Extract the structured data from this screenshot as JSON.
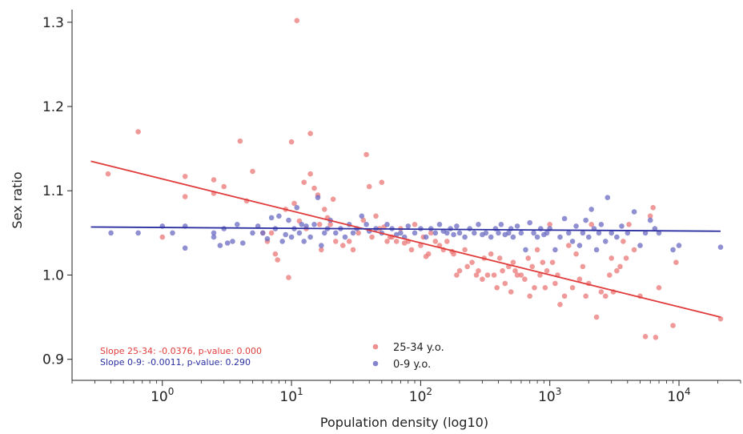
{
  "chart_data": {
    "type": "scatter",
    "title": "",
    "xlabel": "Population density (log10)",
    "ylabel": "Sex ratio",
    "x_scale": "log",
    "xlim": [
      0.2,
      30000
    ],
    "ylim": [
      0.875,
      1.315
    ],
    "x_ticks": [
      {
        "value": 1,
        "base": "10",
        "exp": "0"
      },
      {
        "value": 10,
        "base": "10",
        "exp": "1"
      },
      {
        "value": 100,
        "base": "10",
        "exp": "2"
      },
      {
        "value": 1000,
        "base": "10",
        "exp": "3"
      },
      {
        "value": 10000,
        "base": "10",
        "exp": "4"
      }
    ],
    "y_ticks": [
      {
        "value": 0.9,
        "label": "0.9"
      },
      {
        "value": 1.0,
        "label": "1.0"
      },
      {
        "value": 1.1,
        "label": "1.1"
      },
      {
        "value": 1.2,
        "label": "1.2"
      },
      {
        "value": 1.3,
        "label": "1.3"
      }
    ],
    "grid": false,
    "legend_position": "bottom-center",
    "annotations": [
      {
        "text": "Slope 25-34: -0.0376, p-value: 0.000",
        "color": "#e03c3c"
      },
      {
        "text": "Slope 0-9: -0.0011, p-value: 0.290",
        "color": "#2b2fa0"
      }
    ],
    "series": [
      {
        "name": "25-34 y.o.",
        "color": "#ec7c7c",
        "line_color": "#e03c3c",
        "fit_line": {
          "x": [
            0.28,
            21000
          ],
          "y": [
            1.135,
            0.95
          ]
        },
        "points": [
          [
            0.38,
            1.12
          ],
          [
            0.65,
            1.17
          ],
          [
            1.0,
            1.045
          ],
          [
            1.5,
            1.093
          ],
          [
            1.5,
            1.117
          ],
          [
            2.5,
            1.097
          ],
          [
            2.5,
            1.113
          ],
          [
            3.0,
            1.105
          ],
          [
            4.0,
            1.159
          ],
          [
            4.5,
            1.088
          ],
          [
            5.0,
            1.123
          ],
          [
            6.0,
            1.05
          ],
          [
            6.5,
            1.04
          ],
          [
            7.0,
            1.05
          ],
          [
            7.5,
            1.025
          ],
          [
            7.8,
            1.018
          ],
          [
            9.0,
            1.078
          ],
          [
            9.5,
            0.997
          ],
          [
            10.0,
            1.158
          ],
          [
            10.5,
            1.085
          ],
          [
            11.0,
            1.302
          ],
          [
            11.5,
            1.064
          ],
          [
            12.5,
            1.11
          ],
          [
            13.0,
            1.055
          ],
          [
            14.0,
            1.168
          ],
          [
            14.0,
            1.12
          ],
          [
            15.0,
            1.103
          ],
          [
            16.0,
            1.095
          ],
          [
            16.5,
            1.06
          ],
          [
            17.0,
            1.03
          ],
          [
            18.0,
            1.078
          ],
          [
            19.0,
            1.068
          ],
          [
            20.0,
            1.06
          ],
          [
            21.0,
            1.09
          ],
          [
            22.0,
            1.04
          ],
          [
            25.0,
            1.035
          ],
          [
            28.0,
            1.04
          ],
          [
            30.0,
            1.03
          ],
          [
            33.0,
            1.05
          ],
          [
            36.0,
            1.065
          ],
          [
            38.0,
            1.143
          ],
          [
            40.0,
            1.105
          ],
          [
            42.0,
            1.045
          ],
          [
            45.0,
            1.07
          ],
          [
            48.0,
            1.055
          ],
          [
            50.0,
            1.11
          ],
          [
            52.0,
            1.057
          ],
          [
            55.0,
            1.04
          ],
          [
            58.0,
            1.045
          ],
          [
            60.0,
            1.045
          ],
          [
            65.0,
            1.04
          ],
          [
            70.0,
            1.055
          ],
          [
            75.0,
            1.038
          ],
          [
            80.0,
            1.04
          ],
          [
            85.0,
            1.03
          ],
          [
            90.0,
            1.06
          ],
          [
            100.0,
            1.035
          ],
          [
            105.0,
            1.045
          ],
          [
            110.0,
            1.022
          ],
          [
            115.0,
            1.025
          ],
          [
            120.0,
            1.05
          ],
          [
            130.0,
            1.04
          ],
          [
            140.0,
            1.035
          ],
          [
            150.0,
            1.03
          ],
          [
            160.0,
            1.04
          ],
          [
            175.0,
            1.028
          ],
          [
            180.0,
            1.025
          ],
          [
            190.0,
            1.0
          ],
          [
            200.0,
            1.005
          ],
          [
            220.0,
            1.03
          ],
          [
            230.0,
            1.01
          ],
          [
            250.0,
            1.015
          ],
          [
            270.0,
            1.0
          ],
          [
            280.0,
            1.005
          ],
          [
            300.0,
            0.995
          ],
          [
            310.0,
            1.02
          ],
          [
            330.0,
            1.0
          ],
          [
            350.0,
            1.025
          ],
          [
            370.0,
            1.0
          ],
          [
            390.0,
            0.985
          ],
          [
            410.0,
            1.02
          ],
          [
            430.0,
            1.005
          ],
          [
            450.0,
            0.99
          ],
          [
            480.0,
            1.01
          ],
          [
            500.0,
            0.98
          ],
          [
            520.0,
            1.015
          ],
          [
            540.0,
            1.005
          ],
          [
            560.0,
            1.0
          ],
          [
            600.0,
            1.0
          ],
          [
            640.0,
            0.995
          ],
          [
            680.0,
            1.02
          ],
          [
            700.0,
            0.975
          ],
          [
            730.0,
            1.01
          ],
          [
            760.0,
            0.985
          ],
          [
            800.0,
            1.03
          ],
          [
            840.0,
            1.0
          ],
          [
            880.0,
            1.015
          ],
          [
            920.0,
            0.985
          ],
          [
            950.0,
            1.005
          ],
          [
            1000.0,
            1.06
          ],
          [
            1050.0,
            1.015
          ],
          [
            1100.0,
            0.99
          ],
          [
            1150.0,
            1.0
          ],
          [
            1200.0,
            0.965
          ],
          [
            1300.0,
            0.975
          ],
          [
            1400.0,
            1.035
          ],
          [
            1500.0,
            0.985
          ],
          [
            1600.0,
            1.025
          ],
          [
            1700.0,
            0.995
          ],
          [
            1800.0,
            1.01
          ],
          [
            1900.0,
            0.975
          ],
          [
            2000.0,
            0.99
          ],
          [
            2100.0,
            1.06
          ],
          [
            2300.0,
            0.95
          ],
          [
            2500.0,
            0.98
          ],
          [
            2700.0,
            0.975
          ],
          [
            2900.0,
            1.0
          ],
          [
            3000.0,
            1.02
          ],
          [
            3100.0,
            0.98
          ],
          [
            3300.0,
            1.005
          ],
          [
            3500.0,
            1.01
          ],
          [
            3700.0,
            1.04
          ],
          [
            3900.0,
            1.02
          ],
          [
            4100.0,
            1.06
          ],
          [
            4500.0,
            1.03
          ],
          [
            5000.0,
            0.975
          ],
          [
            5500.0,
            0.927
          ],
          [
            6000.0,
            1.07
          ],
          [
            6300.0,
            1.08
          ],
          [
            6600.0,
            0.926
          ],
          [
            7000.0,
            0.985
          ],
          [
            9000.0,
            0.94
          ],
          [
            9500.0,
            1.015
          ],
          [
            21000.0,
            0.948
          ]
        ]
      },
      {
        "name": "0-9 y.o.",
        "color": "#7070c4",
        "line_color": "#2b2fa0",
        "fit_line": {
          "x": [
            0.28,
            21000
          ],
          "y": [
            1.057,
            1.052
          ]
        },
        "points": [
          [
            0.4,
            1.05
          ],
          [
            0.65,
            1.05
          ],
          [
            1.0,
            1.058
          ],
          [
            1.2,
            1.05
          ],
          [
            1.5,
            1.032
          ],
          [
            1.5,
            1.058
          ],
          [
            2.5,
            1.05
          ],
          [
            2.5,
            1.045
          ],
          [
            2.8,
            1.035
          ],
          [
            3.0,
            1.055
          ],
          [
            3.2,
            1.038
          ],
          [
            3.5,
            1.04
          ],
          [
            3.8,
            1.06
          ],
          [
            4.2,
            1.038
          ],
          [
            5.0,
            1.05
          ],
          [
            5.5,
            1.058
          ],
          [
            6.0,
            1.05
          ],
          [
            6.5,
            1.043
          ],
          [
            7.0,
            1.068
          ],
          [
            7.5,
            1.055
          ],
          [
            8.0,
            1.07
          ],
          [
            8.5,
            1.04
          ],
          [
            9.0,
            1.048
          ],
          [
            9.5,
            1.065
          ],
          [
            10.0,
            1.045
          ],
          [
            10.5,
            1.055
          ],
          [
            11.0,
            1.08
          ],
          [
            11.5,
            1.05
          ],
          [
            12.0,
            1.06
          ],
          [
            12.5,
            1.04
          ],
          [
            13.0,
            1.058
          ],
          [
            14.0,
            1.045
          ],
          [
            15.0,
            1.06
          ],
          [
            16.0,
            1.092
          ],
          [
            17.0,
            1.035
          ],
          [
            18.0,
            1.05
          ],
          [
            19.0,
            1.055
          ],
          [
            20.0,
            1.065
          ],
          [
            22.0,
            1.05
          ],
          [
            24.0,
            1.055
          ],
          [
            26.0,
            1.045
          ],
          [
            28.0,
            1.06
          ],
          [
            30.0,
            1.05
          ],
          [
            32.0,
            1.055
          ],
          [
            35.0,
            1.07
          ],
          [
            38.0,
            1.06
          ],
          [
            40.0,
            1.052
          ],
          [
            45.0,
            1.055
          ],
          [
            50.0,
            1.05
          ],
          [
            55.0,
            1.06
          ],
          [
            60.0,
            1.055
          ],
          [
            65.0,
            1.048
          ],
          [
            70.0,
            1.05
          ],
          [
            75.0,
            1.045
          ],
          [
            80.0,
            1.058
          ],
          [
            90.0,
            1.05
          ],
          [
            100.0,
            1.055
          ],
          [
            110.0,
            1.045
          ],
          [
            120.0,
            1.055
          ],
          [
            130.0,
            1.05
          ],
          [
            140.0,
            1.06
          ],
          [
            150.0,
            1.052
          ],
          [
            160.0,
            1.05
          ],
          [
            170.0,
            1.055
          ],
          [
            180.0,
            1.048
          ],
          [
            190.0,
            1.058
          ],
          [
            200.0,
            1.05
          ],
          [
            220.0,
            1.045
          ],
          [
            240.0,
            1.055
          ],
          [
            260.0,
            1.05
          ],
          [
            280.0,
            1.06
          ],
          [
            300.0,
            1.048
          ],
          [
            320.0,
            1.05
          ],
          [
            350.0,
            1.045
          ],
          [
            380.0,
            1.055
          ],
          [
            400.0,
            1.05
          ],
          [
            420.0,
            1.06
          ],
          [
            450.0,
            1.048
          ],
          [
            480.0,
            1.05
          ],
          [
            500.0,
            1.055
          ],
          [
            520.0,
            1.045
          ],
          [
            560.0,
            1.058
          ],
          [
            600.0,
            1.05
          ],
          [
            650.0,
            1.03
          ],
          [
            700.0,
            1.062
          ],
          [
            750.0,
            1.05
          ],
          [
            800.0,
            1.045
          ],
          [
            850.0,
            1.055
          ],
          [
            900.0,
            1.048
          ],
          [
            950.0,
            1.05
          ],
          [
            1000.0,
            1.055
          ],
          [
            1100.0,
            1.03
          ],
          [
            1200.0,
            1.045
          ],
          [
            1300.0,
            1.067
          ],
          [
            1400.0,
            1.05
          ],
          [
            1500.0,
            1.04
          ],
          [
            1600.0,
            1.058
          ],
          [
            1700.0,
            1.035
          ],
          [
            1800.0,
            1.05
          ],
          [
            1900.0,
            1.065
          ],
          [
            2000.0,
            1.045
          ],
          [
            2100.0,
            1.078
          ],
          [
            2200.0,
            1.055
          ],
          [
            2300.0,
            1.03
          ],
          [
            2400.0,
            1.05
          ],
          [
            2500.0,
            1.06
          ],
          [
            2700.0,
            1.04
          ],
          [
            2800.0,
            1.092
          ],
          [
            3000.0,
            1.05
          ],
          [
            3300.0,
            1.045
          ],
          [
            3600.0,
            1.058
          ],
          [
            4000.0,
            1.05
          ],
          [
            4500.0,
            1.075
          ],
          [
            5000.0,
            1.035
          ],
          [
            5500.0,
            1.05
          ],
          [
            6000.0,
            1.065
          ],
          [
            6500.0,
            1.055
          ],
          [
            7000.0,
            1.05
          ],
          [
            9000.0,
            1.03
          ],
          [
            10000.0,
            1.035
          ],
          [
            21000.0,
            1.033
          ]
        ]
      }
    ]
  }
}
